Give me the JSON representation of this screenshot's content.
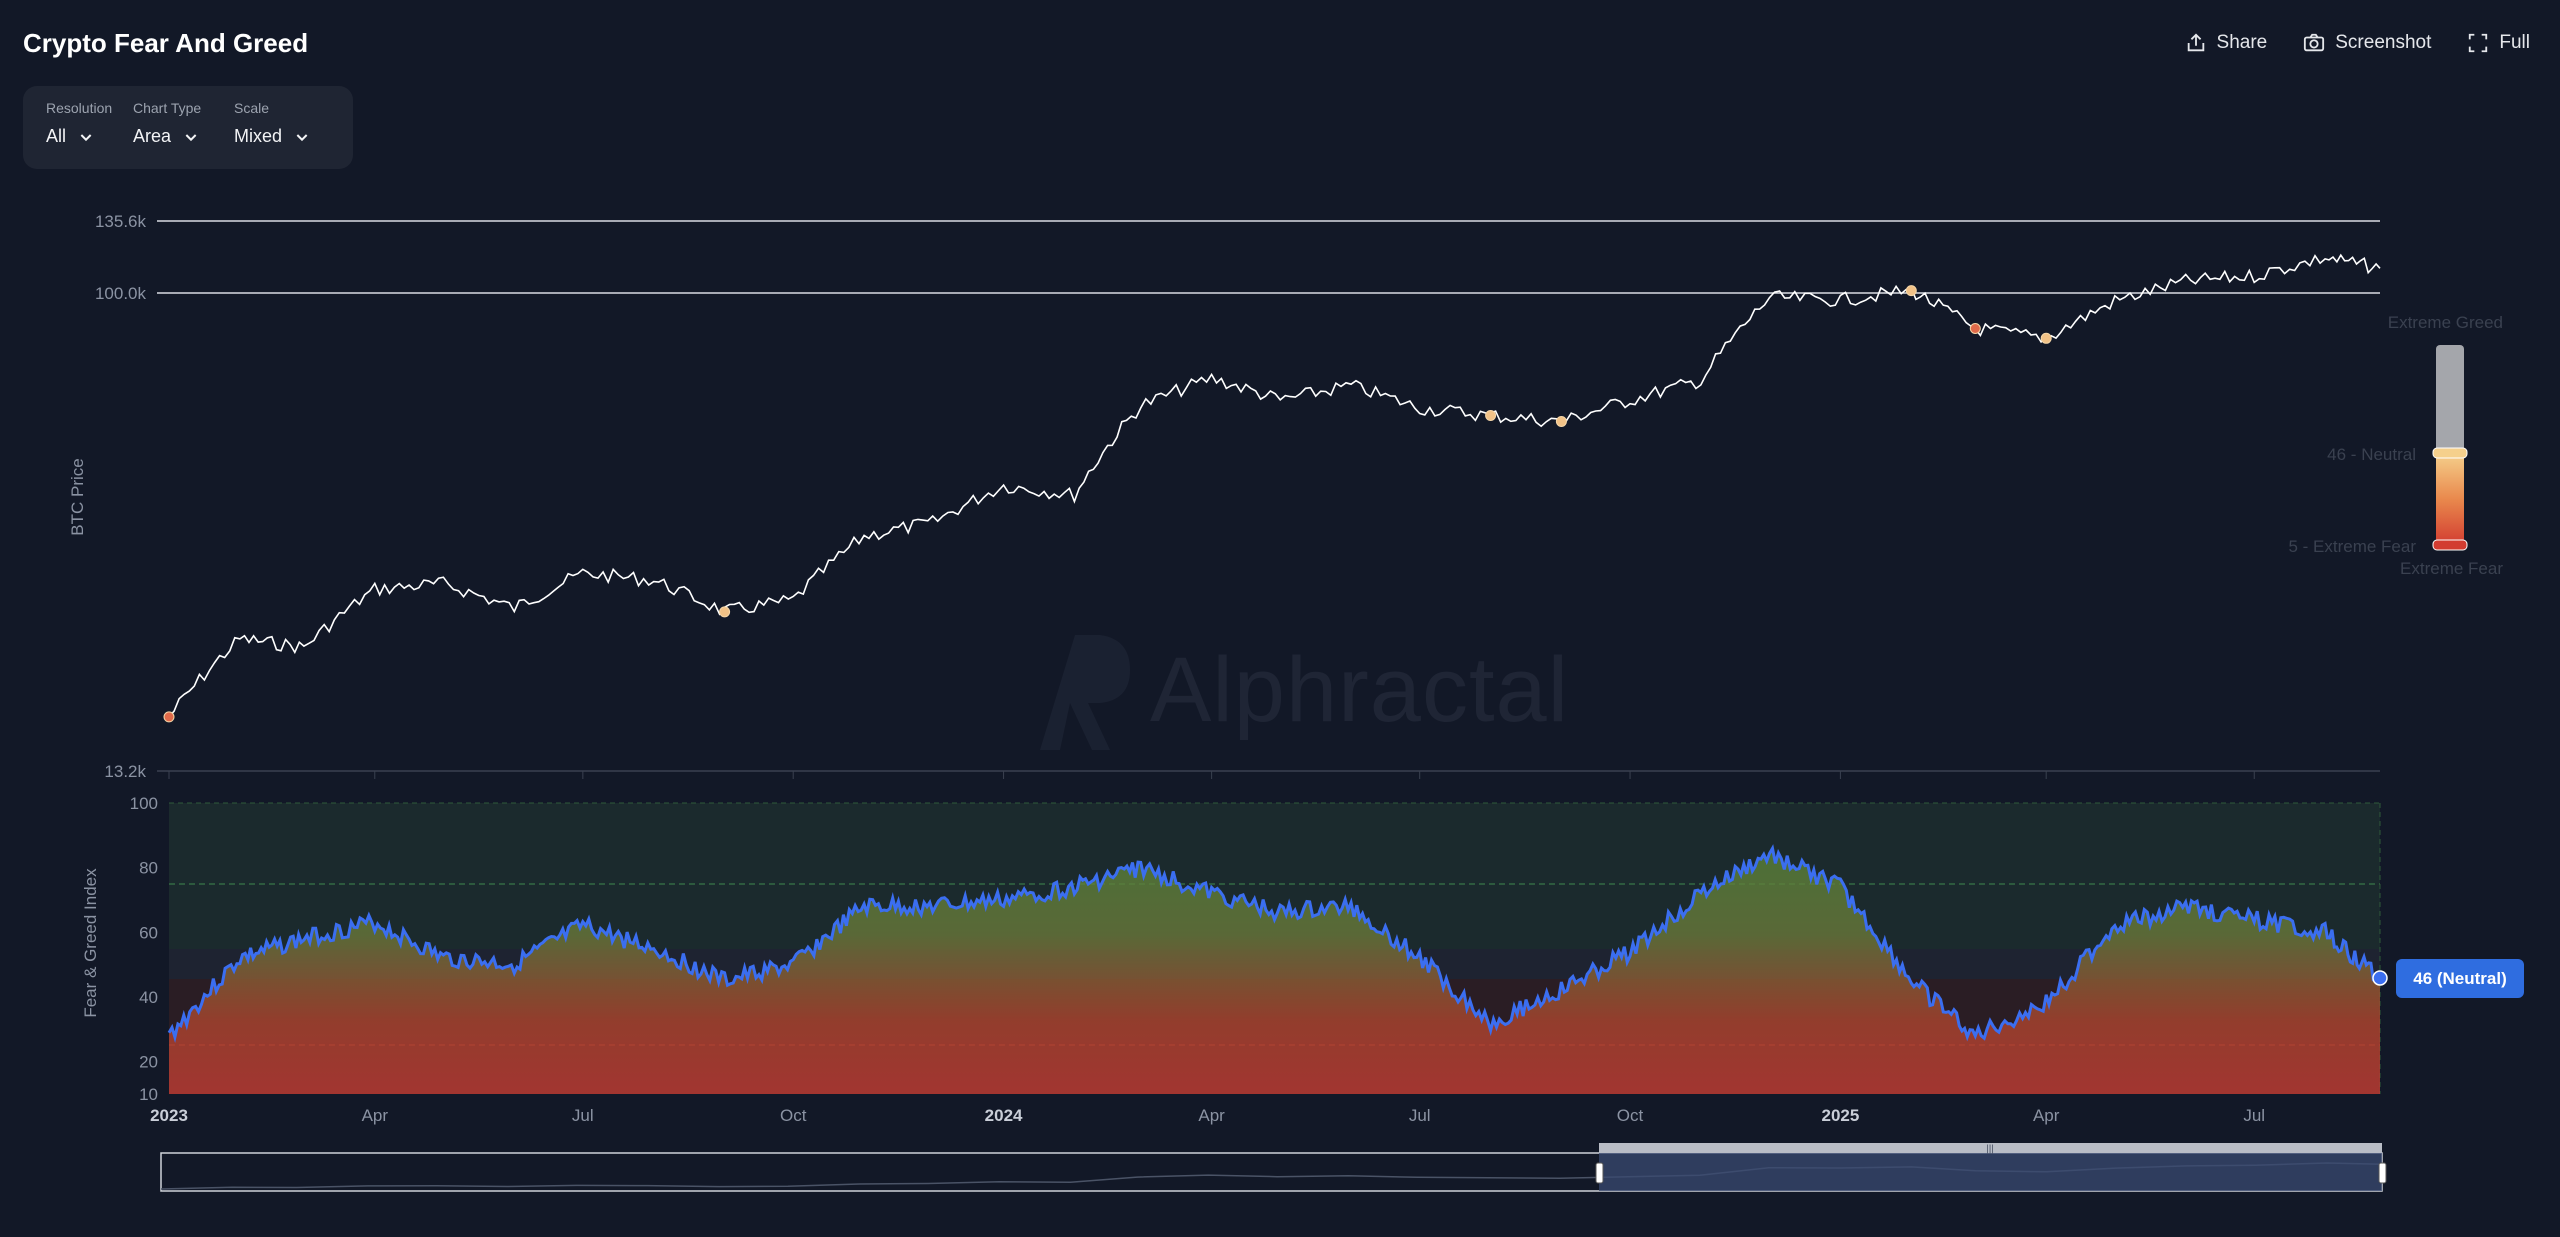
{
  "header": {
    "title": "Crypto Fear And Greed",
    "share_label": "Share",
    "screenshot_label": "Screenshot",
    "full_label": "Full"
  },
  "controls": {
    "resolution": {
      "label": "Resolution",
      "value": "All"
    },
    "chart_type": {
      "label": "Chart Type",
      "value": "Area"
    },
    "scale": {
      "label": "Scale",
      "value": "Mixed"
    }
  },
  "watermark": "Alphractal",
  "gauge": {
    "top_label": "Extreme Greed",
    "bottom_label": "Extreme Fear",
    "current_label": "46 - Neutral",
    "min_label": "5 - Extreme Fear"
  },
  "badge": "46 (Neutral)",
  "colors": {
    "background": "#121827",
    "price_line": "#ffffff",
    "index_line": "#3b6ef0",
    "greed_zone": "#1c2b2e",
    "fear_zone": "#5a1f24",
    "badge": "#2f6de0"
  },
  "chart_data": [
    {
      "type": "line",
      "ylabel": "BTC Price",
      "yticks": [
        "135.6k",
        "100.0k",
        "13.2k"
      ],
      "ylim": [
        13200,
        135600
      ],
      "x": [
        "2023-01-01",
        "2023-02-01",
        "2023-03-01",
        "2023-04-01",
        "2023-05-01",
        "2023-06-01",
        "2023-07-01",
        "2023-08-01",
        "2023-09-01",
        "2023-10-01",
        "2023-11-01",
        "2023-12-01",
        "2024-01-01",
        "2024-02-01",
        "2024-03-01",
        "2024-04-01",
        "2024-05-01",
        "2024-06-01",
        "2024-07-01",
        "2024-08-01",
        "2024-09-01",
        "2024-10-01",
        "2024-11-01",
        "2024-12-01",
        "2025-01-01",
        "2025-02-01",
        "2025-03-01",
        "2025-04-01",
        "2025-05-01",
        "2025-06-01",
        "2025-07-01",
        "2025-08-01",
        "2025-08-25"
      ],
      "series": [
        {
          "values": [
            16600,
            23100,
            22300,
            28500,
            29200,
            26300,
            30500,
            29600,
            25900,
            27200,
            35700,
            37800,
            44200,
            42500,
            62000,
            69700,
            63500,
            67500,
            61400,
            59500,
            58000,
            63500,
            69000,
            98000,
            97000,
            101000,
            86000,
            82500,
            96500,
            105000,
            107500,
            116000,
            111000
          ]
        }
      ]
    },
    {
      "type": "area",
      "ylabel": "Fear & Greed Index",
      "yticks": [
        100,
        80,
        60,
        40,
        20,
        10
      ],
      "ylim": [
        10,
        100
      ],
      "xticks": [
        "2023",
        "Apr",
        "Jul",
        "Oct",
        "2024",
        "Apr",
        "Jul",
        "Oct",
        "2025",
        "Apr",
        "Jul"
      ],
      "x": [
        "2023-01-01",
        "2023-02-01",
        "2023-03-01",
        "2023-04-01",
        "2023-05-01",
        "2023-06-01",
        "2023-07-01",
        "2023-08-01",
        "2023-09-01",
        "2023-10-01",
        "2023-11-01",
        "2023-12-01",
        "2024-01-01",
        "2024-02-01",
        "2024-03-01",
        "2024-04-01",
        "2024-05-01",
        "2024-06-01",
        "2024-07-01",
        "2024-08-01",
        "2024-09-01",
        "2024-10-01",
        "2024-11-01",
        "2024-12-01",
        "2025-01-01",
        "2025-02-01",
        "2025-03-01",
        "2025-04-01",
        "2025-05-01",
        "2025-06-01",
        "2025-07-01",
        "2025-08-01",
        "2025-08-25"
      ],
      "series": [
        {
          "values": [
            28,
            52,
            58,
            63,
            52,
            50,
            62,
            55,
            45,
            50,
            68,
            68,
            70,
            74,
            80,
            72,
            66,
            68,
            52,
            32,
            42,
            54,
            72,
            84,
            74,
            45,
            28,
            38,
            62,
            68,
            64,
            60,
            46
          ]
        }
      ],
      "current": {
        "value": 46,
        "label": "Neutral"
      }
    }
  ]
}
